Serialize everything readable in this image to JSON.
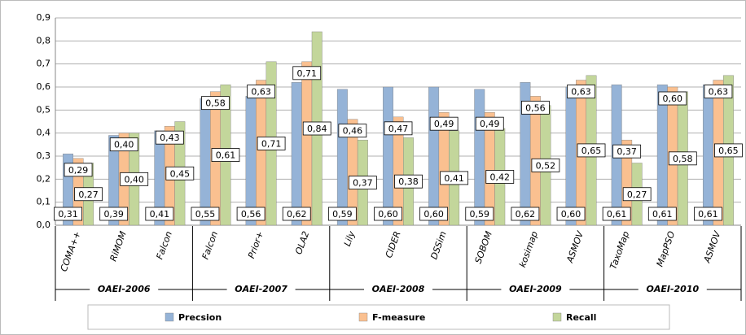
{
  "chart_data": {
    "type": "bar",
    "categories": [
      "COMA++",
      "RiMOM",
      "Falcon",
      "Falcon",
      "Prior+",
      "OLA2",
      "Lily",
      "CIDER",
      "DSSim",
      "SOBOM",
      "kosimap",
      "ASMOV",
      "TaxoMap",
      "MapPSO",
      "ASMOV"
    ],
    "category_groups": [
      {
        "label": "OAEI-2006",
        "size": 3
      },
      {
        "label": "OAEI-2007",
        "size": 3
      },
      {
        "label": "OAEI-2008",
        "size": 3
      },
      {
        "label": "OAEI-2009",
        "size": 3
      },
      {
        "label": "OAEI-2010",
        "size": 3
      }
    ],
    "series": [
      {
        "name": "Precsion",
        "color": "#95b3d7",
        "label_position": "base",
        "values": [
          0.31,
          0.39,
          0.41,
          0.55,
          0.56,
          0.62,
          0.59,
          0.6,
          0.6,
          0.59,
          0.62,
          0.6,
          0.61,
          0.61,
          0.61
        ],
        "value_labels": [
          "0,31",
          "0,39",
          "0,41",
          "0,55",
          "0,56",
          "0,62",
          "0,59",
          "0,60",
          "0,60",
          "0,59",
          "0,62",
          "0,60",
          "0,61",
          "0,61",
          "0,61"
        ]
      },
      {
        "name": "F-measure",
        "color": "#fac090",
        "label_position": "end",
        "values": [
          0.29,
          0.4,
          0.43,
          0.58,
          0.63,
          0.71,
          0.46,
          0.47,
          0.49,
          0.49,
          0.56,
          0.63,
          0.37,
          0.6,
          0.63
        ],
        "value_labels": [
          "0,29",
          "0,40",
          "0,43",
          "0,58",
          "0,63",
          "0,71",
          "0,46",
          "0,47",
          "0,49",
          "0,49",
          "0,56",
          "0,63",
          "0,37",
          "0,60",
          "0,63"
        ]
      },
      {
        "name": "Recall",
        "color": "#c3d69b",
        "label_position": "center",
        "values": [
          0.27,
          0.4,
          0.45,
          0.61,
          0.71,
          0.84,
          0.37,
          0.38,
          0.41,
          0.42,
          0.52,
          0.65,
          0.27,
          0.58,
          0.65
        ],
        "value_labels": [
          "0,27",
          "0,40",
          "0,45",
          "0,61",
          "0,71",
          "0,84",
          "0,37",
          "0,38",
          "0,41",
          "0,42",
          "0,52",
          "0,65",
          "0,27",
          "0,58",
          "0,65"
        ]
      }
    ],
    "ylim": [
      0,
      0.9
    ],
    "yticks": [
      {
        "value": 0,
        "label": "0,0"
      },
      {
        "value": 0.1,
        "label": "0,1"
      },
      {
        "value": 0.2,
        "label": "0,2"
      },
      {
        "value": 0.3,
        "label": "0,3"
      },
      {
        "value": 0.4,
        "label": "0,4"
      },
      {
        "value": 0.5,
        "label": "0,5"
      },
      {
        "value": 0.6,
        "label": "0,6"
      },
      {
        "value": 0.7,
        "label": "0,7"
      },
      {
        "value": 0.8,
        "label": "0,8"
      },
      {
        "value": 0.9,
        "label": "0,9"
      }
    ],
    "grid": true,
    "legend": "bottom"
  }
}
